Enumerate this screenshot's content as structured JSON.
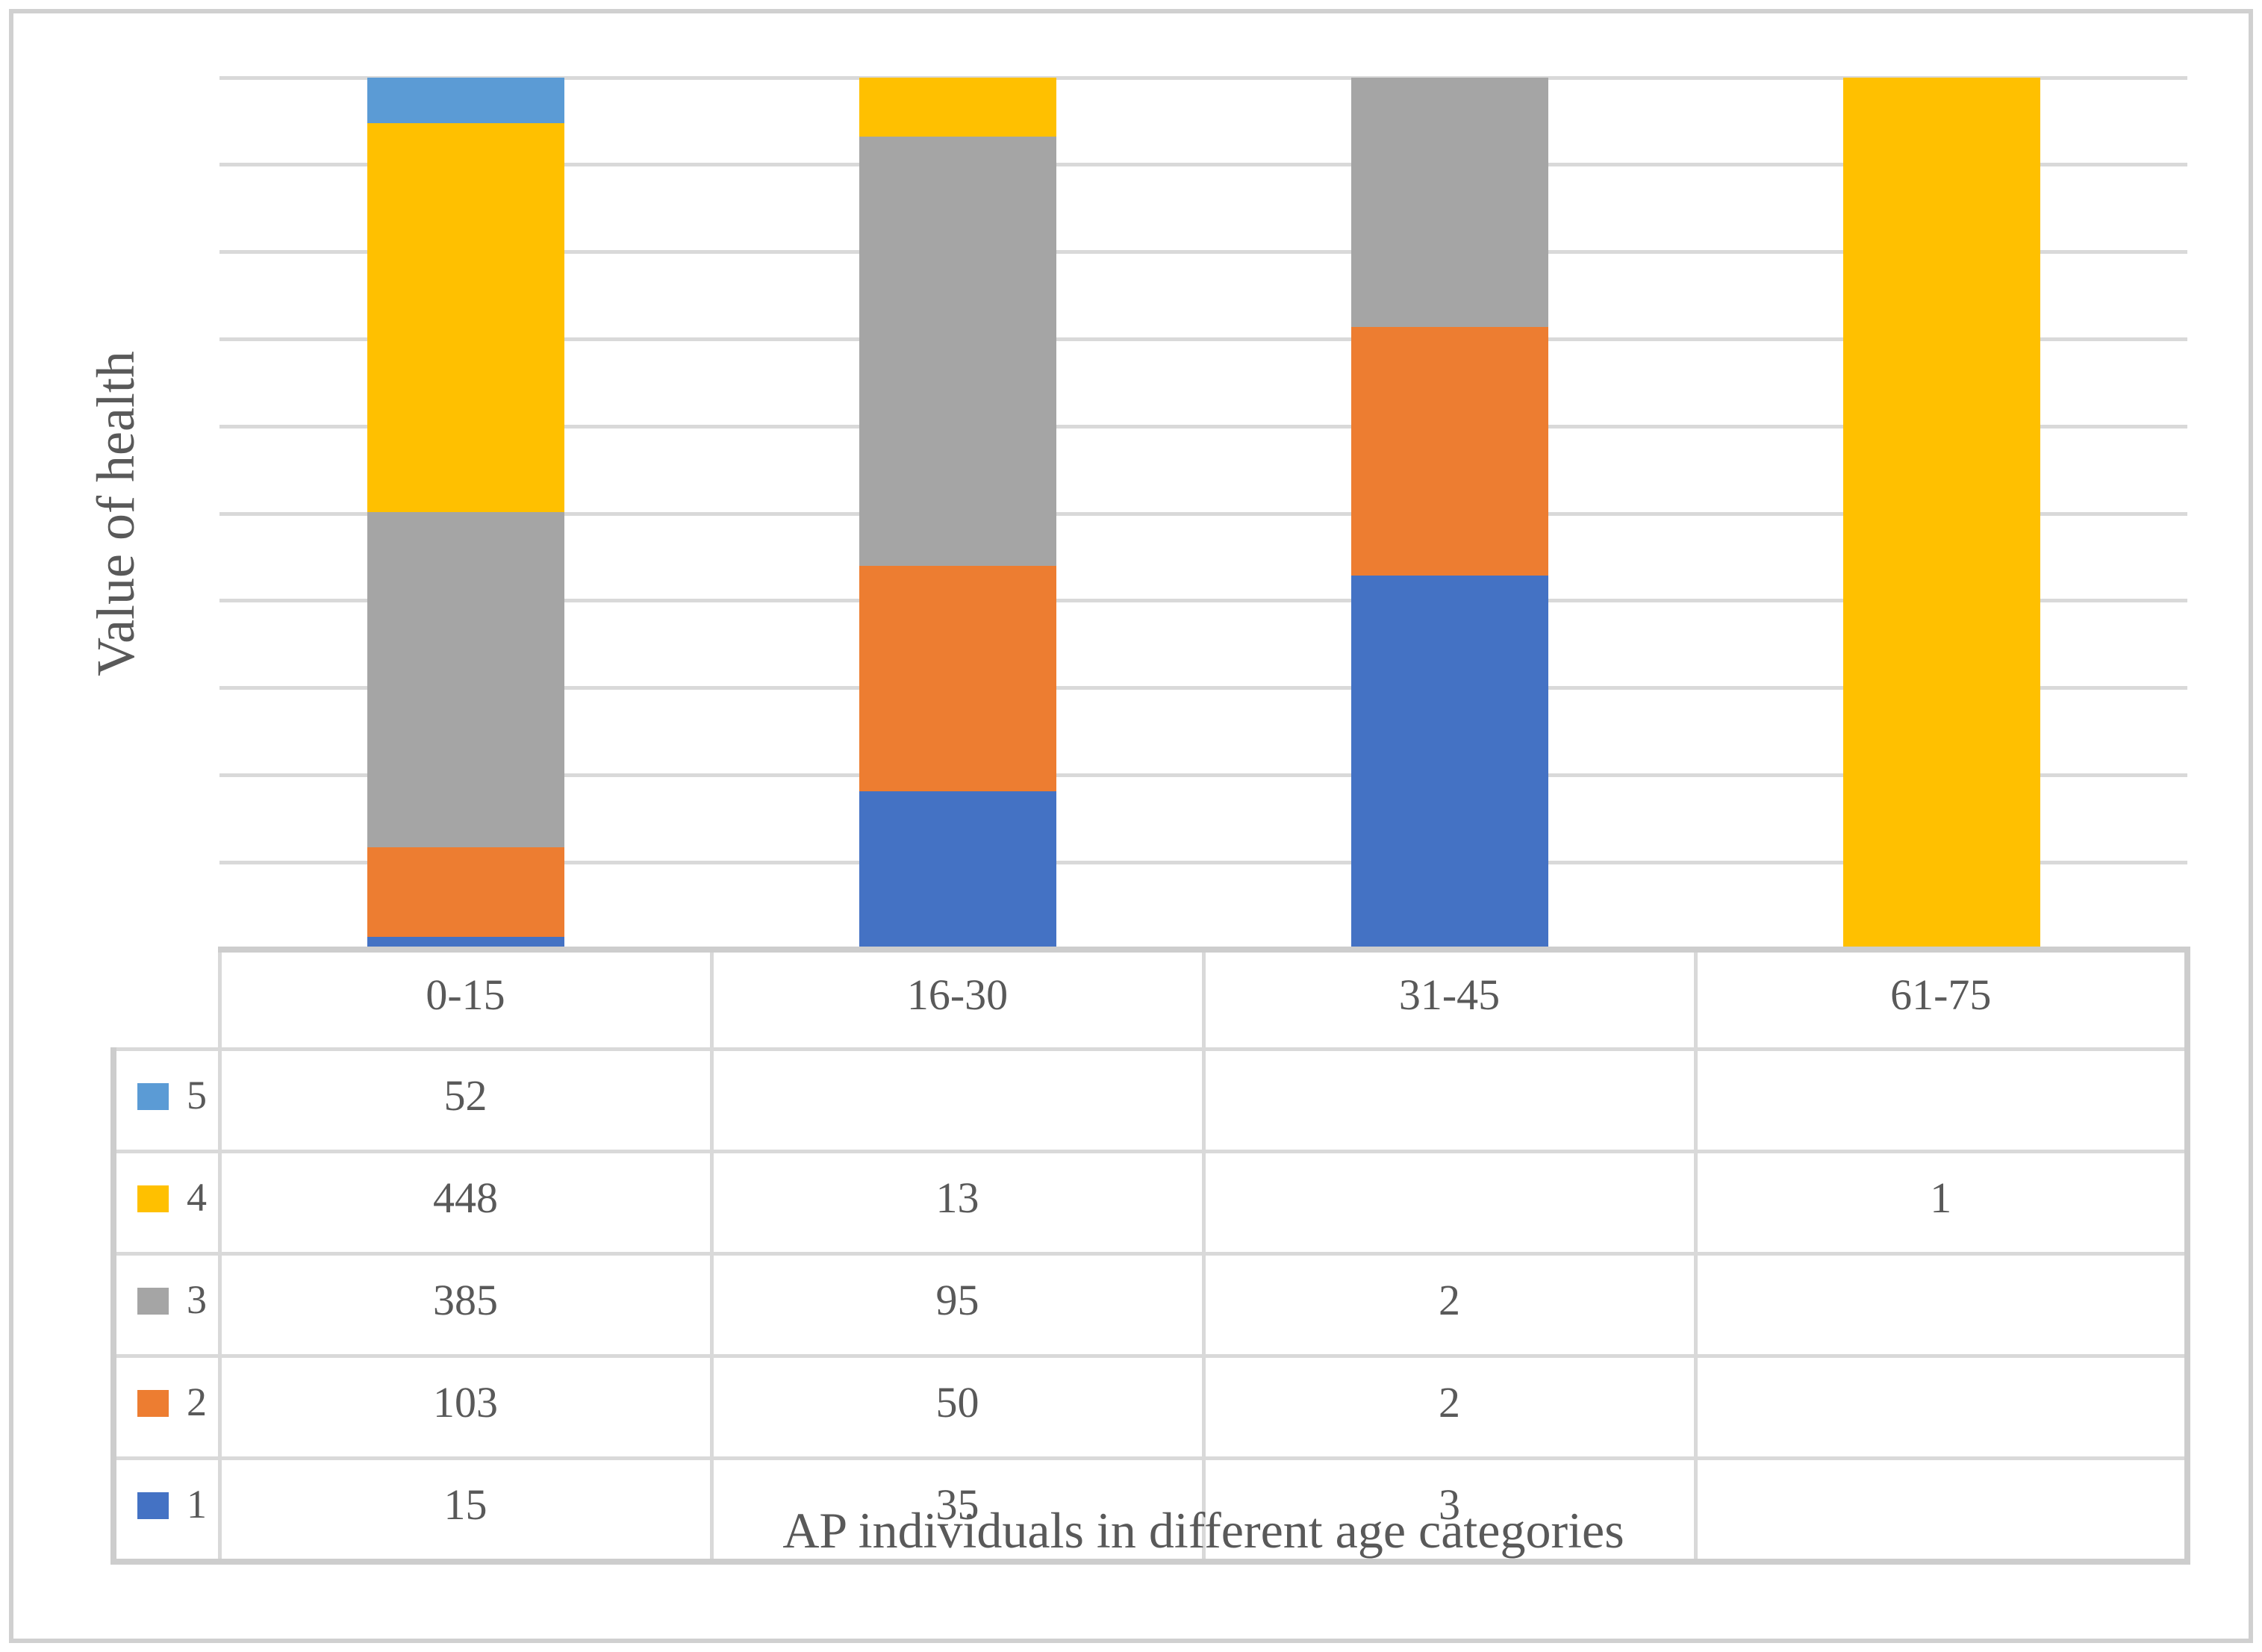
{
  "palette": {
    "text": "#595959",
    "gridline": "#D9D9D9",
    "table_border_inner": "#D9D9D9",
    "table_border_outer": "#CDCDCD",
    "figure_border": "#D0D0D0",
    "background": "#FFFFFF"
  },
  "chart_data": {
    "type": "bar",
    "subtype": "100-percent-stacked-column",
    "title": "",
    "xlabel": "AP individuals in different age categories",
    "ylabel": "Value of health",
    "categories": [
      "0-15",
      "16-30",
      "31-45",
      "61-75"
    ],
    "series": [
      {
        "name": "5",
        "color": "#5B9BD5",
        "values": [
          52,
          null,
          null,
          null
        ]
      },
      {
        "name": "4",
        "color": "#FFC000",
        "values": [
          448,
          13,
          null,
          1
        ]
      },
      {
        "name": "3",
        "color": "#A5A5A5",
        "values": [
          385,
          95,
          2,
          null
        ]
      },
      {
        "name": "2",
        "color": "#ED7D31",
        "values": [
          103,
          50,
          2,
          null
        ]
      },
      {
        "name": "1",
        "color": "#4472C4",
        "values": [
          15,
          35,
          3,
          null
        ]
      }
    ],
    "series_visual_order": "top-to-bottom",
    "stack_order_bottom_to_top": [
      "1",
      "2",
      "3",
      "4",
      "5"
    ],
    "axis": {
      "y_min_percent": 0,
      "y_max_percent": 100,
      "gridline_count": 11,
      "grid": true
    },
    "legend_position": "left-column-of-data-table",
    "data_table_shown": true
  }
}
